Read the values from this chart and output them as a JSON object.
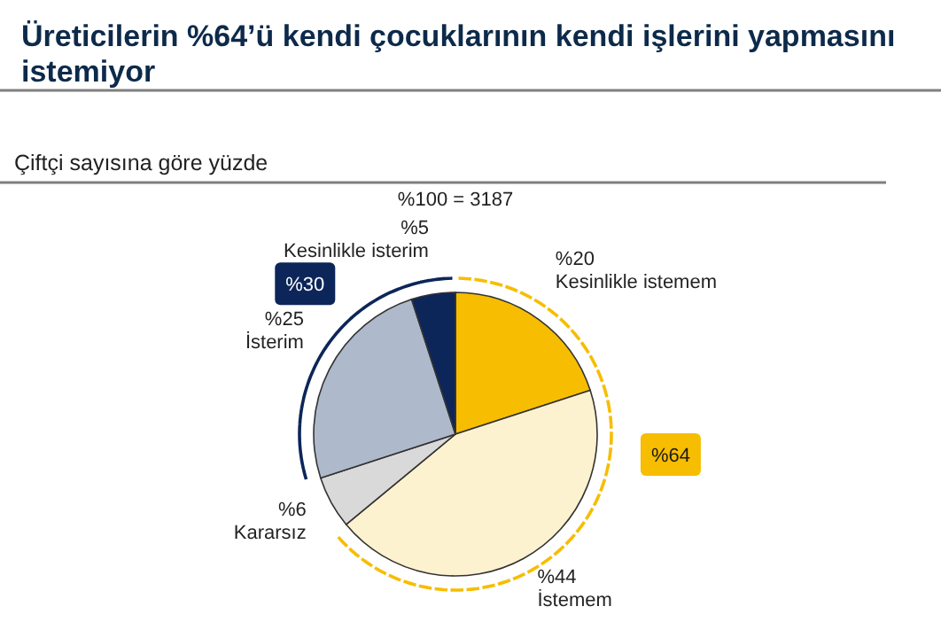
{
  "chart_data": {
    "type": "pie",
    "title": "Üreticilerin %64’ü kendi çocuklarının kendi işlerini yapmasını istemiyor",
    "subtitle": "Çiftçi sayısına göre yüzde",
    "categories": [
      "Kesinlikle istemem",
      "İstemem",
      "Kararsız",
      "İsterim",
      "Kesinlikle isterim"
    ],
    "values": [
      20,
      44,
      6,
      25,
      5
    ],
    "value_labels": [
      "%20",
      "%44",
      "%6",
      "%25",
      "%5"
    ],
    "colors": [
      "#f7bd00",
      "#fdf2cf",
      "#d9d9d9",
      "#aeb9cc",
      "#0d2659"
    ],
    "annotations": [
      "%100 = 3187",
      "%64",
      "%30"
    ]
  }
}
